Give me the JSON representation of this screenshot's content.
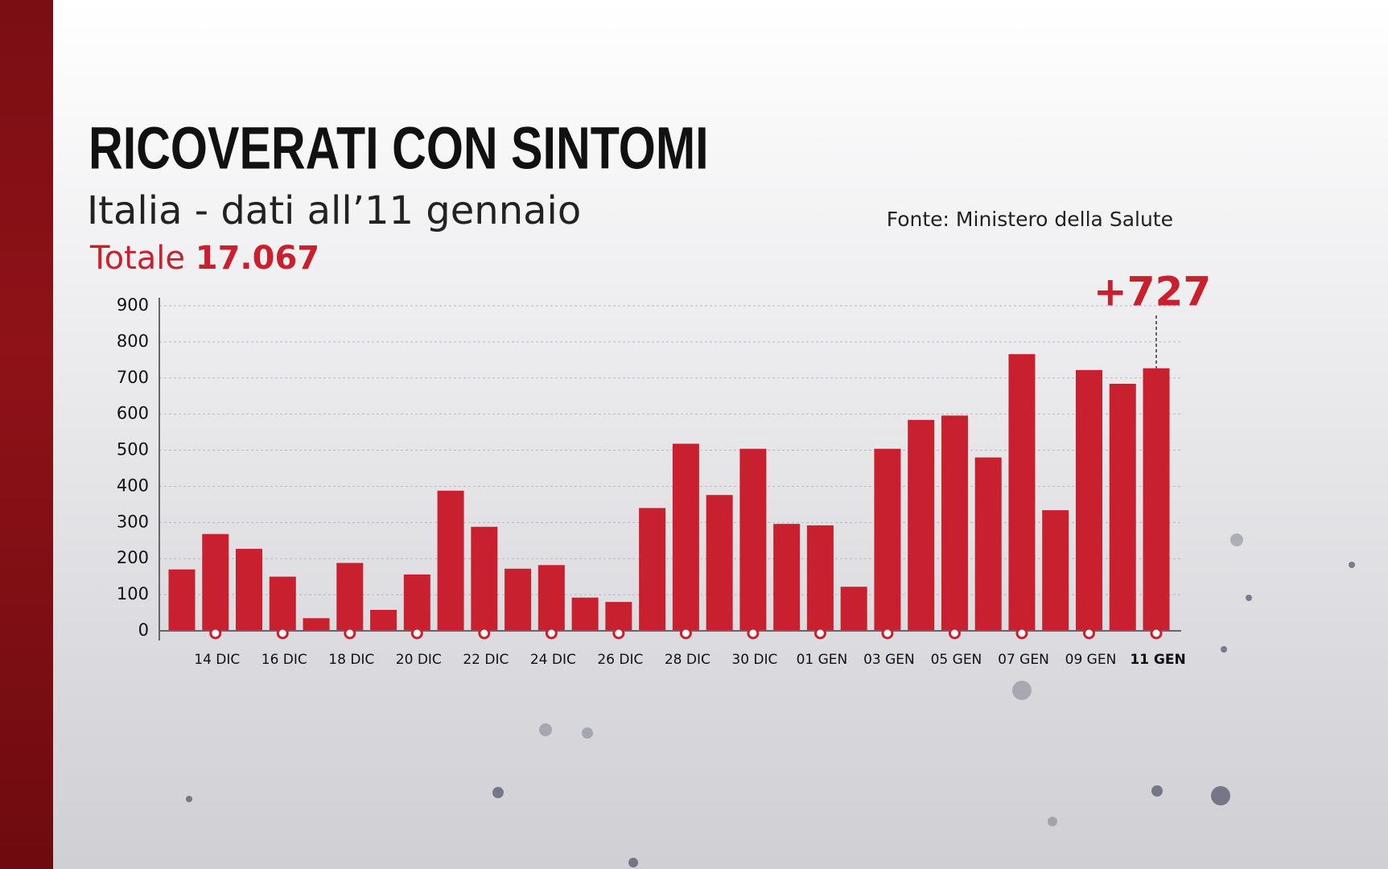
{
  "chart_data": {
    "type": "bar",
    "title": "RICOVERATI CON SINTOMI",
    "subtitle": "Italia - dati all’11 gennaio",
    "total_label": "Totale",
    "total_value": "17.067",
    "source": "Fonte: Ministero della Salute",
    "categories": [
      null,
      "14 DIC",
      null,
      "16 DIC",
      null,
      "18 DIC",
      null,
      "20 DIC",
      null,
      "22 DIC",
      null,
      "24 DIC",
      null,
      "26 DIC",
      null,
      "28 DIC",
      null,
      "30 DIC",
      null,
      "01 GEN",
      null,
      "03 GEN",
      null,
      "05 GEN",
      null,
      "07 GEN",
      null,
      "09 GEN",
      null,
      "11 GEN"
    ],
    "values": [
      170,
      268,
      227,
      150,
      35,
      188,
      58,
      156,
      388,
      288,
      172,
      182,
      92,
      80,
      340,
      518,
      376,
      504,
      296,
      292,
      122,
      504,
      584,
      596,
      480,
      766,
      334,
      722,
      684,
      727
    ],
    "value_labels": [
      null,
      null,
      null,
      null,
      null,
      null,
      null,
      null,
      null,
      null,
      null,
      null,
      null,
      null,
      null,
      null,
      null,
      null,
      null,
      null,
      null,
      null,
      null,
      null,
      null,
      null,
      null,
      null,
      null,
      "+727"
    ],
    "color": "#c8202f",
    "ylim": [
      0,
      900
    ],
    "yticks": [
      0,
      100,
      200,
      300,
      400,
      500,
      600,
      700,
      800,
      900
    ],
    "grid": true
  }
}
